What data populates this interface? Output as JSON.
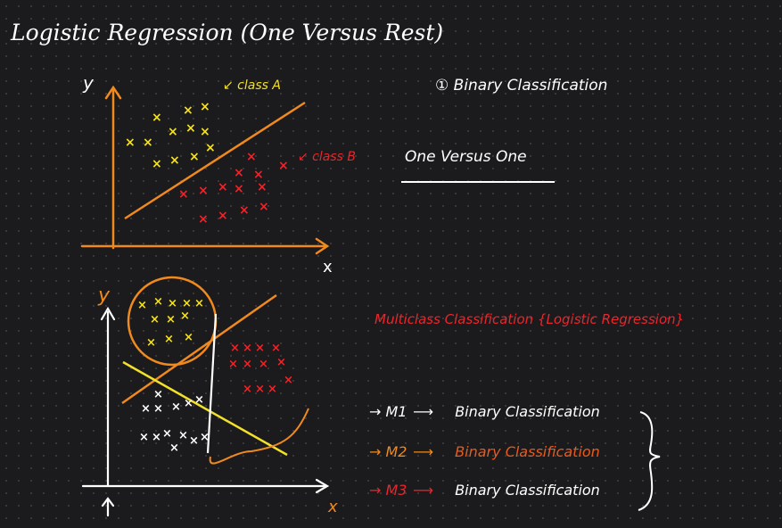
{
  "title": "Logistic Regression (One Versus Rest)",
  "notes": {
    "binary": "① Binary Classification",
    "ovo": "One Versus One",
    "multiclass": "Multiclass Classification {Logistic Regression}"
  },
  "top_plot": {
    "y_label": "y",
    "x_label": "x",
    "class_a_label": "↙ class A",
    "class_b_label": "↙ class B"
  },
  "bottom_plot": {
    "y_label": "y",
    "x_label": "x"
  },
  "models": [
    {
      "model": "→ M1",
      "arrow": "⟶",
      "desc": "Binary Classification"
    },
    {
      "model": "→ M2",
      "arrow": "⟶",
      "desc": "Binary Classification"
    },
    {
      "model": "→ M3",
      "arrow": "⟶",
      "desc": "Binary Classification"
    }
  ],
  "colors": {
    "axis": "#f08a1e",
    "class_a": "#f2e02a",
    "class_b": "#e8262b",
    "white": "#ffffff",
    "background": "#1b1b1d"
  }
}
